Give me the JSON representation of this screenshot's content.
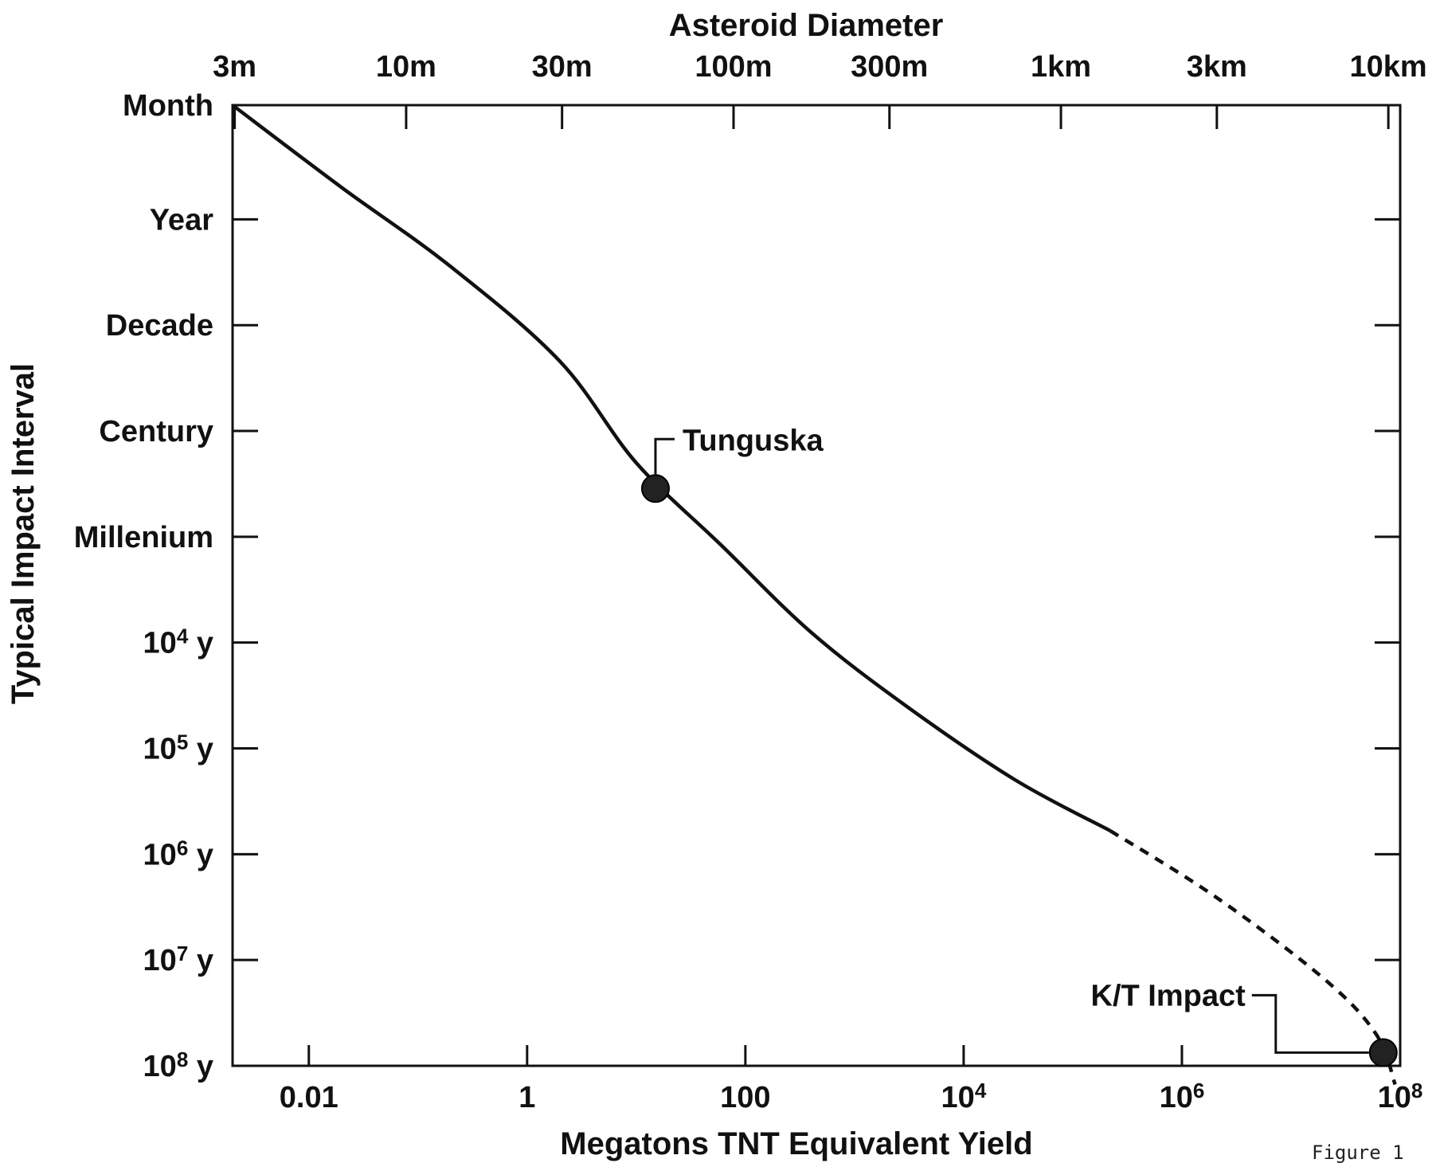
{
  "chart_data": {
    "type": "line",
    "title": "",
    "xlabel": "Megatons TNT Equivalent Yield",
    "ylabel": "Typical Impact Interval",
    "top_axis_label": "Asteroid Diameter",
    "x_scale": "log",
    "x_ticks": [
      {
        "value": 0.01,
        "base": "0.01",
        "exp": ""
      },
      {
        "value": 1,
        "base": "1",
        "exp": ""
      },
      {
        "value": 100,
        "base": "100",
        "exp": ""
      },
      {
        "value": 10000,
        "base": "10",
        "exp": "4"
      },
      {
        "value": 1000000,
        "base": "10",
        "exp": "6"
      },
      {
        "value": 100000000,
        "base": "10",
        "exp": "8"
      }
    ],
    "top_ticks": [
      {
        "label": "3m",
        "yield_mt": 0.00209
      },
      {
        "label": "10m",
        "yield_mt": 0.0779
      },
      {
        "label": "30m",
        "yield_mt": 2.09
      },
      {
        "label": "100m",
        "yield_mt": 77.9
      },
      {
        "label": "300m",
        "yield_mt": 2090
      },
      {
        "label": "1km",
        "yield_mt": 77900
      },
      {
        "label": "3km",
        "yield_mt": 2090000
      },
      {
        "label": "10km",
        "yield_mt": 77900000
      }
    ],
    "y_scale": "log",
    "y_ticks": [
      {
        "value": 0.0833,
        "base": "Month",
        "exp": "",
        "suffix": ""
      },
      {
        "value": 1,
        "base": "Year",
        "exp": "",
        "suffix": ""
      },
      {
        "value": 10,
        "base": "Decade",
        "exp": "",
        "suffix": ""
      },
      {
        "value": 100,
        "base": "Century",
        "exp": "",
        "suffix": ""
      },
      {
        "value": 1000,
        "base": "Millenium",
        "exp": "",
        "suffix": ""
      },
      {
        "value": 10000,
        "base": "10",
        "exp": "4",
        "suffix": " y"
      },
      {
        "value": 100000,
        "base": "10",
        "exp": "5",
        "suffix": " y"
      },
      {
        "value": 1000000,
        "base": "10",
        "exp": "6",
        "suffix": " y"
      },
      {
        "value": 10000000,
        "base": "10",
        "exp": "7",
        "suffix": " y"
      },
      {
        "value": 100000000,
        "base": "10",
        "exp": "8",
        "suffix": " y"
      }
    ],
    "xlim": [
      0.002,
      100000000
    ],
    "ylim": [
      0.0833,
      100000000
    ],
    "series": [
      {
        "style": "solid",
        "points": [
          [
            0.002,
            0.0833
          ],
          [
            0.02,
            0.5
          ],
          [
            0.2,
            2.8
          ],
          [
            2,
            22
          ],
          [
            10,
            200
          ],
          [
            60,
            1200
          ],
          [
            400,
            8000
          ],
          [
            3000,
            40000
          ],
          [
            30000,
            200000
          ],
          [
            220000,
            600000
          ]
        ]
      },
      {
        "style": "dashed",
        "points": [
          [
            220000,
            600000
          ],
          [
            2000000,
            2500000
          ],
          [
            20000000,
            15000000
          ],
          [
            60000000,
            50000000
          ],
          [
            90000000,
            150000000
          ]
        ]
      }
    ],
    "annotations": [
      {
        "label": "Tunguska",
        "x": 15,
        "y": 350
      },
      {
        "label": "K/T Impact",
        "x": 70000000,
        "y": 75000000
      }
    ],
    "note": "Figure 1",
    "grid": false,
    "legend": "none"
  }
}
